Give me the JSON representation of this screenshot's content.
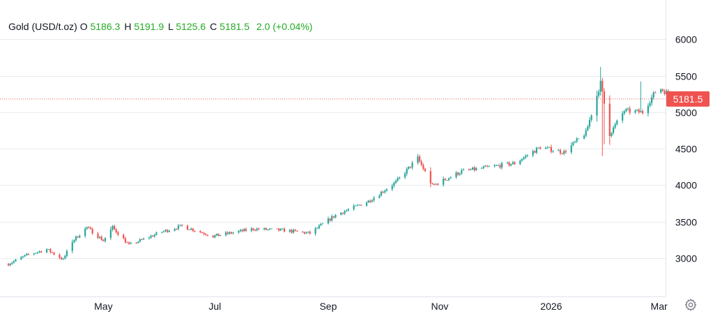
{
  "chart_data": {
    "type": "candlestick",
    "instrument": "Gold (USD/t.oz)",
    "ohlc_legend": {
      "open_label": "O",
      "open": "5186.3",
      "high_label": "H",
      "high": "5191.9",
      "low_label": "L",
      "low": "5125.6",
      "close_label": "C",
      "close": "5181.5",
      "change": "2.0 (+0.04%)"
    },
    "last_price_label": "5181.5",
    "last_price": 5181.5,
    "y_ticks": [
      3000,
      3500,
      4000,
      4500,
      5000,
      5500,
      6000
    ],
    "x_ticks": [
      "May",
      "Jul",
      "Sep",
      "Nov",
      "2026",
      "Mar"
    ],
    "ylim": [
      2600,
      6400
    ],
    "grid": true,
    "up_color": "#26a69a",
    "down_color": "#ef5350",
    "legend_value_color": "#22ab22",
    "price_line_color": "#ef5350",
    "approx_close_path": [
      [
        "2025-03-10",
        2920
      ],
      [
        "2025-03-20",
        3040
      ],
      [
        "2025-03-31",
        3120
      ],
      [
        "2025-04-09",
        2980
      ],
      [
        "2025-04-14",
        3230
      ],
      [
        "2025-04-22",
        3420
      ],
      [
        "2025-05-01",
        3240
      ],
      [
        "2025-05-06",
        3420
      ],
      [
        "2025-05-15",
        3180
      ],
      [
        "2025-06-02",
        3360
      ],
      [
        "2025-06-13",
        3440
      ],
      [
        "2025-06-30",
        3300
      ],
      [
        "2025-07-22",
        3400
      ],
      [
        "2025-08-08",
        3380
      ],
      [
        "2025-08-22",
        3340
      ],
      [
        "2025-09-05",
        3590
      ],
      [
        "2025-09-23",
        3780
      ],
      [
        "2025-10-08",
        4040
      ],
      [
        "2025-10-20",
        4370
      ],
      [
        "2025-10-28",
        3990
      ],
      [
        "2025-11-13",
        4190
      ],
      [
        "2025-12-12",
        4300
      ],
      [
        "2025-12-26",
        4520
      ],
      [
        "2026-01-08",
        4450
      ],
      [
        "2026-01-20",
        4720
      ],
      [
        "2026-01-28",
        5400
      ],
      [
        "2026-02-02",
        4700
      ],
      [
        "2026-02-10",
        5020
      ],
      [
        "2026-02-20",
        5000
      ],
      [
        "2026-02-27",
        5280
      ],
      [
        "2026-03-02",
        5320
      ],
      [
        "2026-03-10",
        5181.5
      ]
    ]
  },
  "ui": {
    "settings_icon": "gear-icon"
  }
}
